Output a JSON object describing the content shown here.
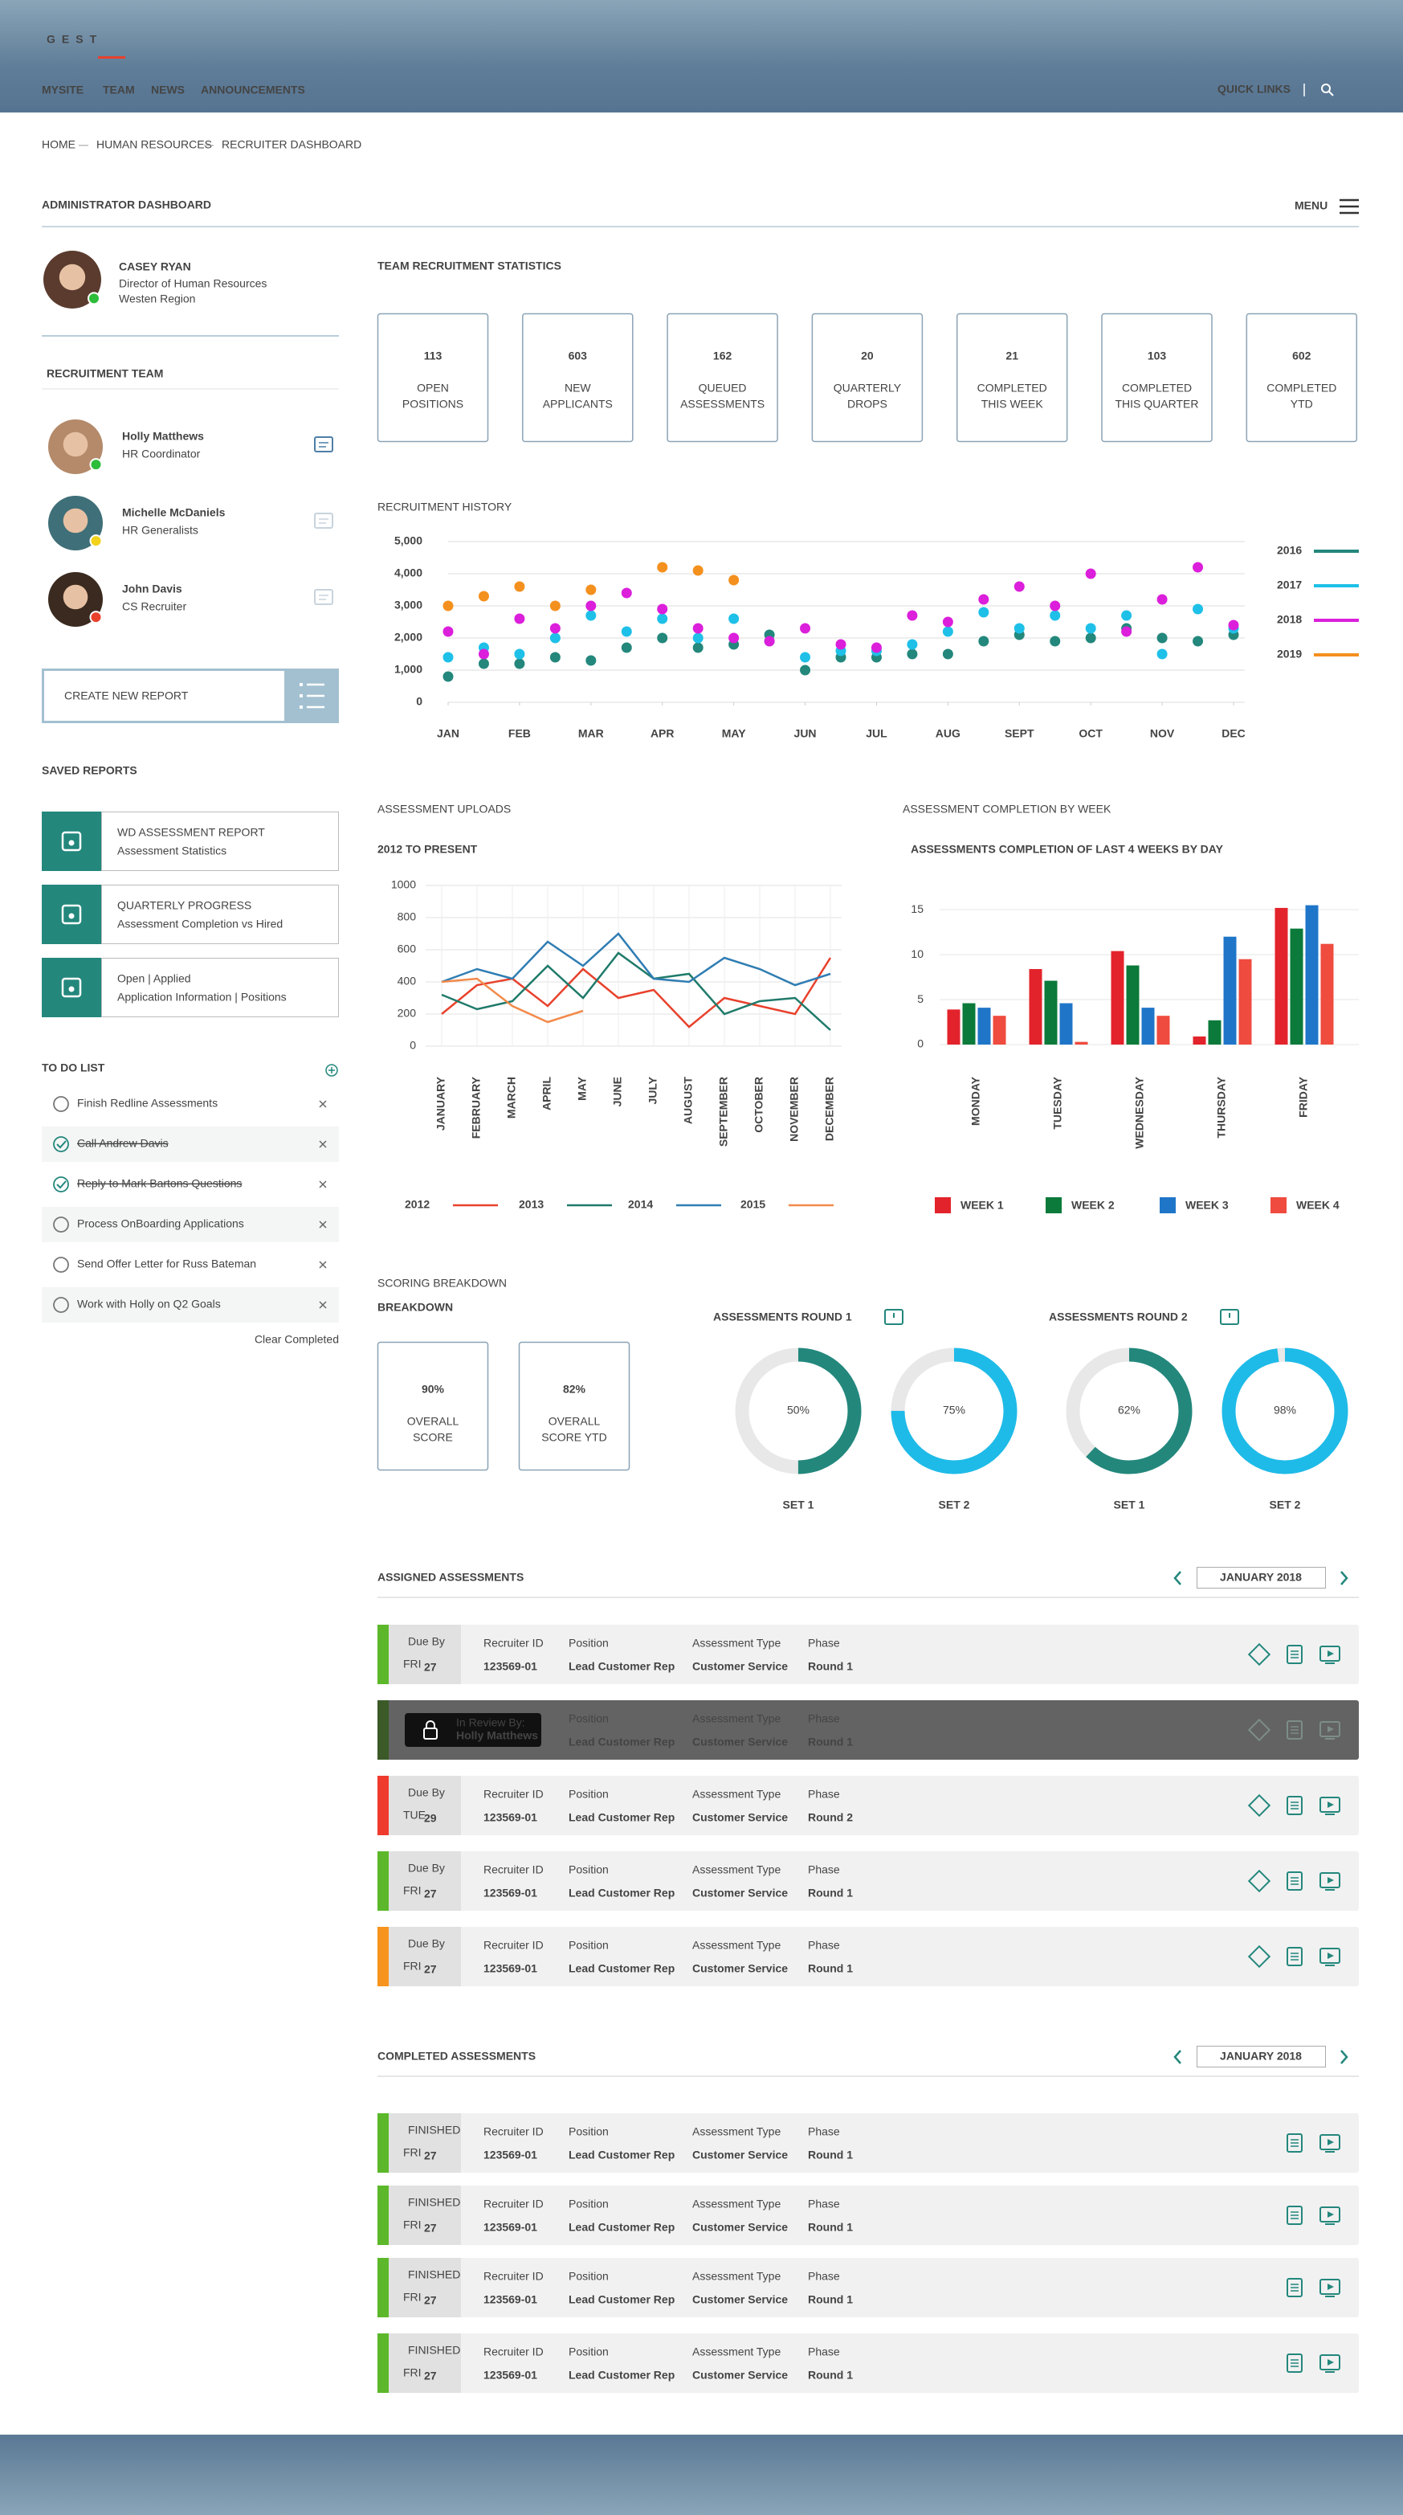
{
  "header": {
    "logo": "GEST",
    "nav": [
      "MYSITE",
      "TEAM",
      "NEWS",
      "ANNOUNCEMENTS"
    ],
    "quick_links": "QUICK LINKS"
  },
  "breadcrumb": [
    "HOME",
    "HUMAN RESOURCES",
    "RECRUITER DASHBOARD"
  ],
  "page_title": "ADMINISTRATOR DASHBOARD",
  "menu": "MENU",
  "profile": {
    "name": "CASEY RYAN",
    "role": "Director of Human Resources",
    "region": "Westen Region",
    "status": "#2ebd3a"
  },
  "team": {
    "title": "RECRUITMENT TEAM",
    "members": [
      {
        "name": "Holly Matthews",
        "role": "HR Coordinator",
        "status": "#2ebd3a"
      },
      {
        "name": "Michelle McDaniels",
        "role": "HR Generalists",
        "status": "#f2d21b"
      },
      {
        "name": "John Davis",
        "role": "CS Recruiter",
        "status": "#e8412c"
      }
    ]
  },
  "create_report": "CREATE NEW REPORT",
  "saved_reports": {
    "title": "SAVED REPORTS",
    "items": [
      {
        "name": "WD ASSESSMENT REPORT",
        "detail": "Assessment Statistics"
      },
      {
        "name": "QUARTERLY PROGRESS",
        "detail": "Assessment Completion vs Hired"
      },
      {
        "name": "Open | Applied",
        "detail": "Application Information | Positions"
      }
    ]
  },
  "todo": {
    "title": "TO DO LIST",
    "clear": "Clear Completed",
    "items": [
      {
        "text": "Finish Redline Assessments",
        "done": false
      },
      {
        "text": "Call Andrew Davis",
        "done": true
      },
      {
        "text": "Reply to Mark Bartons Questions",
        "done": true
      },
      {
        "text": "Process OnBoarding Applications",
        "done": false
      },
      {
        "text": "Send Offer Letter for Russ Bateman",
        "done": false
      },
      {
        "text": "Work with Holly on Q2 Goals",
        "done": false
      }
    ]
  },
  "stats": {
    "title": "TEAM RECRUITMENT STATISTICS",
    "cards": [
      {
        "value": 113,
        "label": [
          "OPEN",
          "POSITIONS"
        ]
      },
      {
        "value": 603,
        "label": [
          "NEW",
          "APPLICANTS"
        ]
      },
      {
        "value": 162,
        "label": [
          "QUEUED",
          "ASSESSMENTS"
        ]
      },
      {
        "value": 20,
        "label": [
          "QUARTERLY",
          "DROPS"
        ]
      },
      {
        "value": 21,
        "label": [
          "COMPLETED",
          "THIS WEEK"
        ]
      },
      {
        "value": 103,
        "label": [
          "COMPLETED",
          "THIS QUARTER"
        ]
      },
      {
        "value": 602,
        "label": [
          "COMPLETED",
          "YTD"
        ]
      }
    ]
  },
  "chart_data": [
    {
      "type": "scatter",
      "title": "RECRUITMENT HISTORY",
      "x": [
        0,
        1,
        2,
        3,
        4,
        5,
        6,
        7,
        8,
        9,
        10,
        11,
        12,
        13,
        14,
        15,
        16,
        17,
        18,
        19,
        20,
        21,
        22
      ],
      "xlim": [
        0,
        22
      ],
      "xticks": [
        {
          "value": 0,
          "label": "JAN"
        },
        {
          "value": 2,
          "label": "FEB"
        },
        {
          "value": 4,
          "label": "MAR"
        },
        {
          "value": 6,
          "label": "APR"
        },
        {
          "value": 8,
          "label": "MAY"
        },
        {
          "value": 10,
          "label": "JUN"
        },
        {
          "value": 12,
          "label": "JUL"
        },
        {
          "value": 14,
          "label": "AUG"
        },
        {
          "value": 16,
          "label": "SEPT"
        },
        {
          "value": 18,
          "label": "OCT"
        },
        {
          "value": 20,
          "label": "NOV"
        },
        {
          "value": 22,
          "label": "DEC"
        }
      ],
      "ylim": [
        0,
        5000
      ],
      "yticks": [
        0,
        {
          "value": 1000,
          "label": "1,000"
        },
        {
          "value": 2000,
          "label": "2,000"
        },
        {
          "value": 3000,
          "label": "3,000"
        },
        {
          "value": 4000,
          "label": "4,000"
        },
        {
          "value": 5000,
          "label": "5,000"
        }
      ],
      "grid": true,
      "series": [
        {
          "name": "2016",
          "color": "#23877c",
          "values": [
            800,
            1200,
            1200,
            1400,
            1300,
            1700,
            2000,
            1700,
            1800,
            2100,
            1000,
            1400,
            1400,
            1500,
            1500,
            1900,
            2100,
            1900,
            2000,
            2300,
            2000,
            1900,
            2100
          ]
        },
        {
          "name": "2017",
          "color": "#1ec0e8",
          "values": [
            1400,
            1700,
            1500,
            2000,
            2700,
            2200,
            2600,
            2000,
            2600,
            1900,
            1400,
            1600,
            1600,
            1800,
            2200,
            2800,
            2300,
            2700,
            2300,
            2700,
            1500,
            2900,
            2300
          ]
        },
        {
          "name": "2018",
          "color": "#db1fdb",
          "values": [
            2200,
            1500,
            2600,
            2300,
            3000,
            3400,
            2900,
            2300,
            2000,
            1900,
            2300,
            1800,
            1700,
            2700,
            2500,
            3200,
            3600,
            3000,
            4000,
            2200,
            3200,
            4200,
            2400
          ]
        },
        {
          "name": "2019",
          "color": "#f4901e",
          "values": [
            3000,
            3300,
            3600,
            3000,
            3500,
            null,
            4200,
            4100,
            3800,
            null,
            null,
            null,
            null,
            null,
            null,
            null,
            null,
            null,
            null,
            null,
            null,
            null,
            null
          ]
        }
      ]
    },
    {
      "type": "line",
      "title": "ASSESSMENT UPLOADS",
      "subtitle": "2012 TO PRESENT",
      "categories": [
        "JANUARY",
        "FEBRUARY",
        "MARCH",
        "APRIL",
        "MAY",
        "JUNE",
        "JULY",
        "AUGUST",
        "SEPTEMBER",
        "OCTOBER",
        "NOVEMBER",
        "DECEMBER"
      ],
      "ylim": [
        0,
        1000
      ],
      "yticks": [
        0,
        200,
        400,
        600,
        800,
        1000
      ],
      "grid": true,
      "series": [
        {
          "name": "2012",
          "color": "#e8412c",
          "values": [
            200,
            380,
            420,
            250,
            480,
            300,
            350,
            120,
            300,
            250,
            200,
            550
          ]
        },
        {
          "name": "2013",
          "color": "#1f7a6a",
          "values": [
            320,
            230,
            280,
            500,
            300,
            580,
            420,
            450,
            200,
            280,
            300,
            100
          ]
        },
        {
          "name": "2014",
          "color": "#2f7db3",
          "values": [
            400,
            480,
            420,
            650,
            500,
            700,
            420,
            400,
            550,
            480,
            380,
            450
          ]
        },
        {
          "name": "2015",
          "color": "#f28a4a",
          "values": [
            400,
            420,
            250,
            150,
            220,
            null,
            null,
            null,
            null,
            null,
            null,
            null
          ]
        }
      ]
    },
    {
      "type": "bar",
      "title": "ASSESSMENT COMPLETION BY WEEK",
      "subtitle": "ASSESSMENTS COMPLETION OF LAST 4 WEEKS BY DAY",
      "categories": [
        "MONDAY",
        "TUESDAY",
        "WEDNESDAY",
        "THURSDAY",
        "FRIDAY"
      ],
      "ylim": [
        0,
        18.5
      ],
      "yticks": [
        0,
        5,
        10,
        15
      ],
      "grid": true,
      "series": [
        {
          "name": "WEEK 1",
          "color": "#e3232b",
          "values": [
            3.9,
            8.4,
            10.4,
            0.9,
            15.2
          ]
        },
        {
          "name": "WEEK 2",
          "color": "#0b7a3a",
          "values": [
            4.6,
            7.1,
            8.8,
            2.7,
            12.9
          ]
        },
        {
          "name": "WEEK 3",
          "color": "#1f76c8",
          "values": [
            4.1,
            4.6,
            4.1,
            12,
            15.5
          ]
        },
        {
          "name": "WEEK 4",
          "color": "#ef4b3f",
          "values": [
            3.2,
            0.3,
            3.2,
            9.5,
            11.2
          ]
        }
      ]
    }
  ],
  "scoring": {
    "title": "SCORING BREAKDOWN",
    "subtitle": "BREAKDOWN",
    "cards": [
      {
        "value": "90%",
        "label": [
          "OVERALL",
          "SCORE"
        ]
      },
      {
        "value": "82%",
        "label": [
          "OVERALL",
          "SCORE YTD"
        ]
      }
    ],
    "rounds": [
      {
        "title": "ASSESSMENTS ROUND 1",
        "sets": [
          {
            "name": "SET 1",
            "value": 50,
            "value_label": "50%",
            "color": "#23877c"
          },
          {
            "name": "SET 2",
            "value": 75,
            "value_label": "75%",
            "color": "#1ebbe8"
          }
        ]
      },
      {
        "title": "ASSESSMENTS ROUND 2",
        "sets": [
          {
            "name": "SET 1",
            "value": 62,
            "value_label": "62%",
            "color": "#23877c"
          },
          {
            "name": "SET 2",
            "value": 98,
            "value_label": "98%",
            "color": "#1ebbe8"
          }
        ]
      }
    ]
  },
  "assigned": {
    "title": "ASSIGNED ASSESSMENTS",
    "month": "JANUARY 2018",
    "columns": [
      "Recruiter ID",
      "Position",
      "Assessment Type",
      "Phase"
    ],
    "rows": [
      {
        "status": "Due By",
        "day": "FRI",
        "date": 27,
        "recruiter_id": "123569-01",
        "position": "Lead Customer Rep",
        "type": "Customer Service",
        "phase": "Round 1",
        "color": "#5cb82a"
      },
      {
        "review_label": "In Review By:",
        "reviewer": "Holly Matthews",
        "position": "Lead Customer Rep",
        "type": "Customer Service",
        "phase": "Round 1",
        "color": "#3b5a28"
      },
      {
        "status": "Due By",
        "day": "TUE",
        "date": 29,
        "recruiter_id": "123569-01",
        "position": "Lead Customer Rep",
        "type": "Customer Service",
        "phase": "Round 2",
        "color": "#ee3b2e"
      },
      {
        "status": "Due By",
        "day": "FRI",
        "date": 27,
        "recruiter_id": "123569-01",
        "position": "Lead Customer Rep",
        "type": "Customer Service",
        "phase": "Round 1",
        "color": "#5cb82a"
      },
      {
        "status": "Due By",
        "day": "FRI",
        "date": 27,
        "recruiter_id": "123569-01",
        "position": "Lead Customer Rep",
        "type": "Customer Service",
        "phase": "Round 1",
        "color": "#f7941d"
      }
    ]
  },
  "completed": {
    "title": "COMPLETED ASSESSMENTS",
    "month": "JANUARY 2018",
    "columns": [
      "Recruiter ID",
      "Position",
      "Assessment Type",
      "Phase"
    ],
    "rows": [
      {
        "status": "FINISHED",
        "day": "FRI",
        "date": 27,
        "recruiter_id": "123569-01",
        "position": "Lead Customer Rep",
        "type": "Customer Service",
        "phase": "Round 1",
        "color": "#5cb82a"
      },
      {
        "status": "FINISHED",
        "day": "FRI",
        "date": 27,
        "recruiter_id": "123569-01",
        "position": "Lead Customer Rep",
        "type": "Customer Service",
        "phase": "Round 1",
        "color": "#5cb82a"
      },
      {
        "status": "FINISHED",
        "day": "FRI",
        "date": 27,
        "recruiter_id": "123569-01",
        "position": "Lead Customer Rep",
        "type": "Customer Service",
        "phase": "Round 1",
        "color": "#5cb82a"
      },
      {
        "status": "FINISHED",
        "day": "FRI",
        "date": 27,
        "recruiter_id": "123569-01",
        "position": "Lead Customer Rep",
        "type": "Customer Service",
        "phase": "Round 1",
        "color": "#5cb82a"
      }
    ]
  }
}
